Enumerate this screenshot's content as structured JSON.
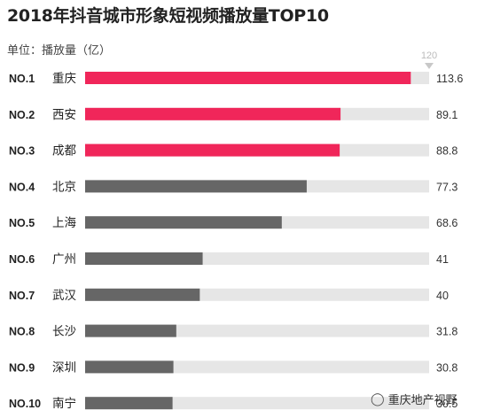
{
  "chart_data": {
    "type": "bar",
    "orientation": "horizontal",
    "title": "2018年抖音城市形象短视频播放量TOP10",
    "unit_label": "单位：播放量（亿）",
    "max_label": "120",
    "xlim": [
      0,
      120
    ],
    "ranks": [
      "NO.1",
      "NO.2",
      "NO.3",
      "NO.4",
      "NO.5",
      "NO.6",
      "NO.7",
      "NO.8",
      "NO.9",
      "NO.10"
    ],
    "categories": [
      "重庆",
      "西安",
      "成都",
      "北京",
      "上海",
      "广州",
      "武汉",
      "长沙",
      "深圳",
      "南宁"
    ],
    "values": [
      113.6,
      89.1,
      88.8,
      77.3,
      68.6,
      41,
      40,
      31.8,
      30.8,
      30.5
    ],
    "value_labels": [
      "113.6",
      "89.1",
      "88.8",
      "77.3",
      "68.6",
      "41",
      "40",
      "31.8",
      "30.8",
      "30.5"
    ],
    "highlight_count": 3,
    "colors": {
      "highlight": "#f0265a",
      "normal": "#666666",
      "track": "#e6e6e6",
      "max_marker": "#c8c8c8"
    }
  },
  "watermark": {
    "icon": "wechat-icon",
    "text": "重庆地产视野"
  }
}
